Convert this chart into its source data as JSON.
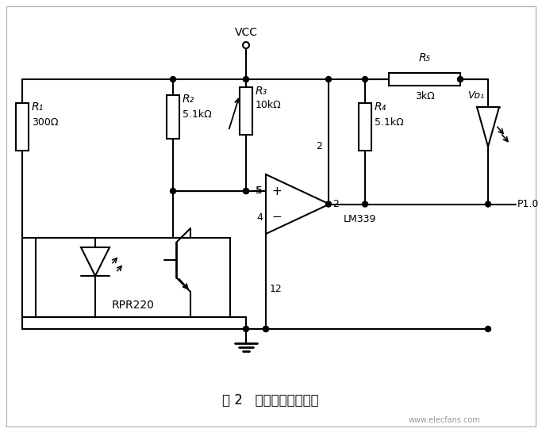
{
  "title": "图 2   光电检测电路原理",
  "background_color": "#ffffff",
  "line_color": "#000000",
  "figsize": [
    6.83,
    5.5
  ],
  "dpi": 100,
  "watermark": "www.elecfans.com",
  "labels": {
    "VCC": "VCC",
    "R1": "R₁",
    "R1_val": "300Ω",
    "R2": "R₂",
    "R2_val": "5.1kΩ",
    "R3": "R₃",
    "R3_val": "10kΩ",
    "R4": "R₄",
    "R4_val": "5.1kΩ",
    "R5": "R₅",
    "R5_val": "3kΩ",
    "VD1": "Vᴅ₁",
    "LM339": "LM339",
    "RPR220": "RPR220",
    "P10": "P1.0",
    "pin2_top": "2",
    "pin2_out": "2",
    "pin4": "4",
    "pin5": "5",
    "pin12": "12"
  }
}
